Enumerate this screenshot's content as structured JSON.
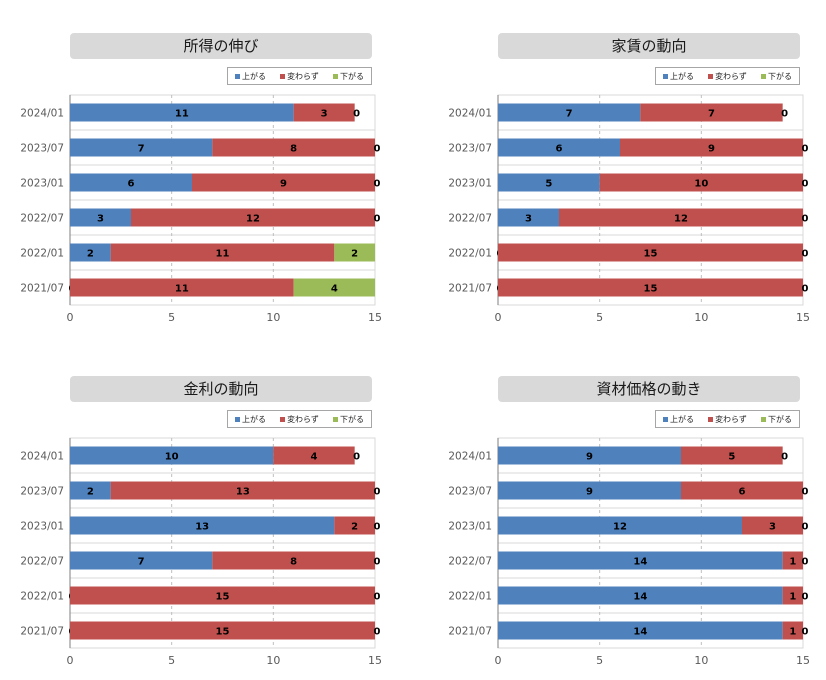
{
  "colors": {
    "up": "#4f81bd",
    "same": "#c0504d",
    "down": "#9bbb59",
    "grid": "#d9d9d9",
    "axis": "#7f7f7f"
  },
  "legend": {
    "up": "上がる",
    "same": "変わらず",
    "down": "下がる"
  },
  "chart_data": [
    {
      "type": "bar",
      "stacked": true,
      "orientation": "horizontal",
      "title": "所得の伸び",
      "categories": [
        "2024/01",
        "2023/07",
        "2023/01",
        "2022/07",
        "2022/01",
        "2021/07"
      ],
      "series": [
        {
          "name": "上がる",
          "values": [
            11,
            7,
            6,
            3,
            2,
            0
          ]
        },
        {
          "name": "変わらず",
          "values": [
            3,
            8,
            9,
            12,
            11,
            11
          ]
        },
        {
          "name": "下がる",
          "values": [
            0,
            0,
            0,
            0,
            2,
            4
          ]
        }
      ],
      "xlim": [
        0,
        15
      ],
      "xticks": [
        0,
        5,
        10,
        15
      ],
      "legend_position": "top-right"
    },
    {
      "type": "bar",
      "stacked": true,
      "orientation": "horizontal",
      "title": "家賃の動向",
      "categories": [
        "2024/01",
        "2023/07",
        "2023/01",
        "2022/07",
        "2022/01",
        "2021/07"
      ],
      "series": [
        {
          "name": "上がる",
          "values": [
            7,
            6,
            5,
            3,
            0,
            0
          ]
        },
        {
          "name": "変わらず",
          "values": [
            7,
            9,
            10,
            12,
            15,
            15
          ]
        },
        {
          "name": "下がる",
          "values": [
            0,
            0,
            0,
            0,
            0,
            0
          ]
        }
      ],
      "xlim": [
        0,
        15
      ],
      "xticks": [
        0,
        5,
        10,
        15
      ],
      "legend_position": "top-right"
    },
    {
      "type": "bar",
      "stacked": true,
      "orientation": "horizontal",
      "title": "金利の動向",
      "categories": [
        "2024/01",
        "2023/07",
        "2023/01",
        "2022/07",
        "2022/01",
        "2021/07"
      ],
      "series": [
        {
          "name": "上がる",
          "values": [
            10,
            2,
            13,
            7,
            0,
            0
          ]
        },
        {
          "name": "変わらず",
          "values": [
            4,
            13,
            2,
            8,
            15,
            15
          ]
        },
        {
          "name": "下がる",
          "values": [
            0,
            0,
            0,
            0,
            0,
            0
          ]
        }
      ],
      "xlim": [
        0,
        15
      ],
      "xticks": [
        0,
        5,
        10,
        15
      ],
      "legend_position": "top-right"
    },
    {
      "type": "bar",
      "stacked": true,
      "orientation": "horizontal",
      "title": "資材価格の動き",
      "categories": [
        "2024/01",
        "2023/07",
        "2023/01",
        "2022/07",
        "2022/01",
        "2021/07"
      ],
      "series": [
        {
          "name": "上がる",
          "values": [
            9,
            9,
            12,
            14,
            14,
            14
          ]
        },
        {
          "name": "変わらず",
          "values": [
            5,
            6,
            3,
            1,
            1,
            1
          ]
        },
        {
          "name": "下がる",
          "values": [
            0,
            0,
            0,
            0,
            0,
            0
          ]
        }
      ],
      "xlim": [
        0,
        15
      ],
      "xticks": [
        0,
        5,
        10,
        15
      ],
      "legend_position": "top-right"
    }
  ]
}
